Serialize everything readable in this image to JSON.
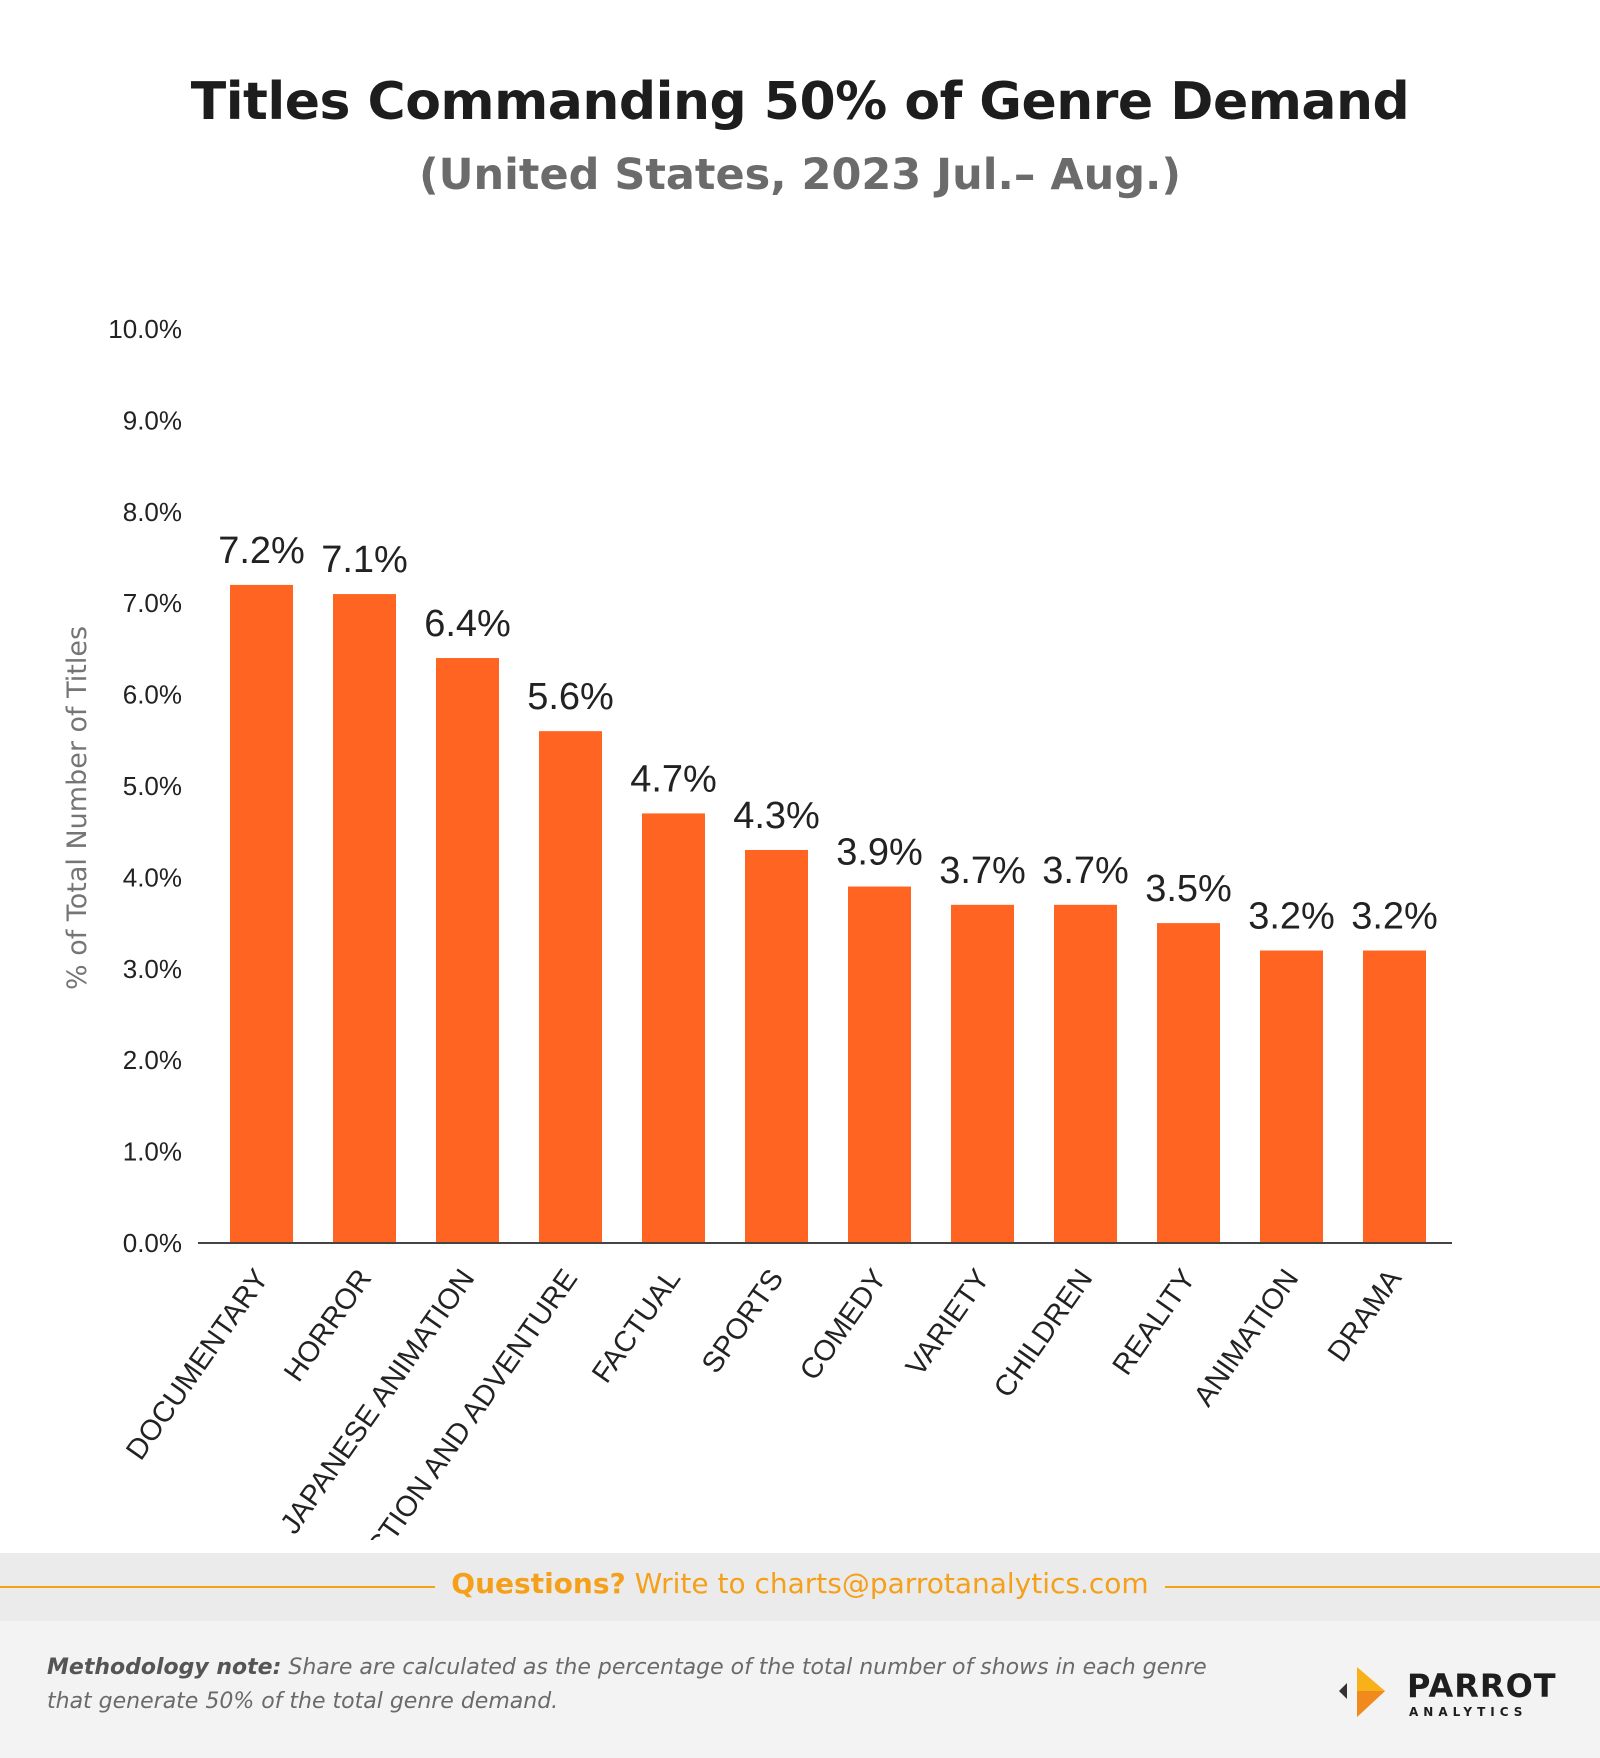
{
  "chart_data": {
    "type": "bar",
    "title": "Titles Commanding 50% of Genre Demand",
    "subtitle": "(United States, 2023 Jul.– Aug.)",
    "xlabel": "",
    "ylabel": "% of Total Number of Titles",
    "ylim": [
      0,
      10
    ],
    "yticks": [
      "0.0%",
      "1.0%",
      "2.0%",
      "3.0%",
      "4.0%",
      "5.0%",
      "6.0%",
      "7.0%",
      "8.0%",
      "9.0%",
      "10.0%"
    ],
    "categories": [
      "DOCUMENTARY",
      "HORROR",
      "JAPANESE ANIMATION",
      "ACTION AND ADVENTURE",
      "FACTUAL",
      "SPORTS",
      "COMEDY",
      "VARIETY",
      "CHILDREN",
      "REALITY",
      "ANIMATION",
      "DRAMA"
    ],
    "values": [
      7.2,
      7.1,
      6.4,
      5.6,
      4.7,
      4.3,
      3.9,
      3.7,
      3.7,
      3.5,
      3.2,
      3.2
    ],
    "labels": [
      "7.2%",
      "7.1%",
      "6.4%",
      "5.6%",
      "4.7%",
      "4.3%",
      "3.9%",
      "3.7%",
      "3.7%",
      "3.5%",
      "3.2%",
      "3.2%"
    ],
    "bar_color": "#ff6422",
    "grid": false
  },
  "footer": {
    "questions_label": "Questions?",
    "contact_text": "Write to charts@parrotanalytics.com",
    "accent_color": "#f5a01a"
  },
  "methodology": {
    "label": "Methodology note:",
    "text": "Share are calculated as the percentage of the total number of shows in each genre that generate 50% of the total genre demand."
  },
  "logo": {
    "name": "PARROT",
    "sub": "ANALYTICS"
  }
}
